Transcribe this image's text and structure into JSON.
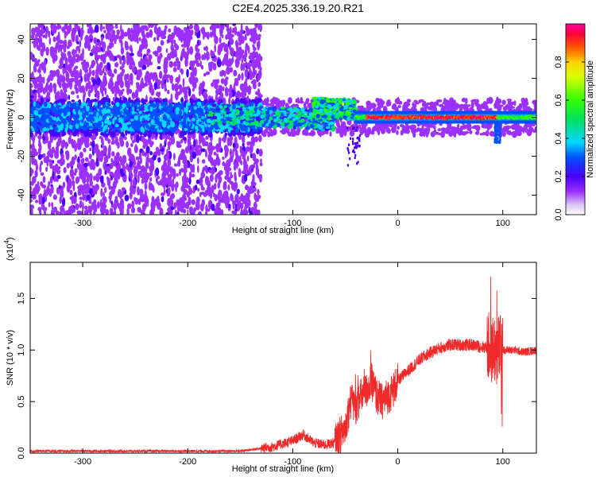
{
  "title": "C2E4.2025.336.19.20.R21",
  "chart_data": [
    {
      "type": "heatmap",
      "title": "C2E4.2025.336.19.20.R21",
      "xlabel": "Height of straight line (km)",
      "ylabel": "Frequency (Hz)",
      "xlim": [
        -350,
        132
      ],
      "ylim": [
        -50,
        48
      ],
      "x_ticks": [
        "-300",
        "-200",
        "-100",
        "0",
        "100"
      ],
      "y_ticks": [
        "-40",
        "-20",
        "0",
        "20",
        "40"
      ],
      "colorbar": {
        "label": "Normalized spectral amplitude",
        "ticks": [
          "0.0",
          "0.2",
          "0.4",
          "0.6",
          "0.8"
        ],
        "range": [
          0,
          1
        ]
      },
      "features": [
        {
          "x_range": [
            -350,
            -130
          ],
          "description": "broadband scattered low amplitude",
          "amplitude": 0.15
        },
        {
          "x_range": [
            -180,
            -60
          ],
          "freq_center": 2,
          "amplitude": 0.45
        },
        {
          "x_range": [
            -80,
            -40
          ],
          "freq_center": 5,
          "amplitude": 0.55
        },
        {
          "x_range": [
            -40,
            132
          ],
          "freq_center": 0,
          "amplitude": 0.97
        },
        {
          "x_range": [
            92,
            98
          ],
          "freq_center": -8,
          "amplitude": 0.25
        }
      ]
    },
    {
      "type": "line",
      "xlabel": "Height of straight line (km)",
      "ylabel": "SNR (10 * v/v)",
      "y_multiplier": "(x10",
      "y_multiplier_exp": "4",
      "y_multiplier_close": ")",
      "xlim": [
        -350,
        132
      ],
      "ylim": [
        0,
        1.85
      ],
      "x_ticks": [
        "-300",
        "-200",
        "-100",
        "0",
        "100"
      ],
      "y_ticks": [
        "0.0",
        "0.5",
        "1.0",
        "1.5"
      ],
      "color": "#ee2a2a",
      "series": [
        {
          "points": [
            [
              -350,
              0.02
            ],
            [
              -300,
              0.02
            ],
            [
              -250,
              0.02
            ],
            [
              -200,
              0.02
            ],
            [
              -150,
              0.02
            ],
            [
              -120,
              0.06
            ],
            [
              -100,
              0.12
            ],
            [
              -90,
              0.18
            ],
            [
              -80,
              0.1
            ],
            [
              -70,
              0.08
            ],
            [
              -60,
              0.1
            ],
            [
              -50,
              0.25
            ],
            [
              -45,
              0.5
            ],
            [
              -40,
              0.45
            ],
            [
              -35,
              0.55
            ],
            [
              -30,
              0.6
            ],
            [
              -25,
              0.7
            ],
            [
              -20,
              0.55
            ],
            [
              -15,
              0.5
            ],
            [
              -10,
              0.55
            ],
            [
              -5,
              0.6
            ],
            [
              0,
              0.7
            ],
            [
              10,
              0.8
            ],
            [
              20,
              0.9
            ],
            [
              30,
              0.97
            ],
            [
              40,
              1.02
            ],
            [
              50,
              1.05
            ],
            [
              60,
              1.05
            ],
            [
              70,
              1.05
            ],
            [
              80,
              1.03
            ],
            [
              90,
              1.02
            ],
            [
              95,
              1.0
            ],
            [
              100,
              1.0
            ],
            [
              110,
              1.0
            ],
            [
              120,
              0.98
            ],
            [
              132,
              1.0
            ]
          ]
        }
      ]
    }
  ]
}
